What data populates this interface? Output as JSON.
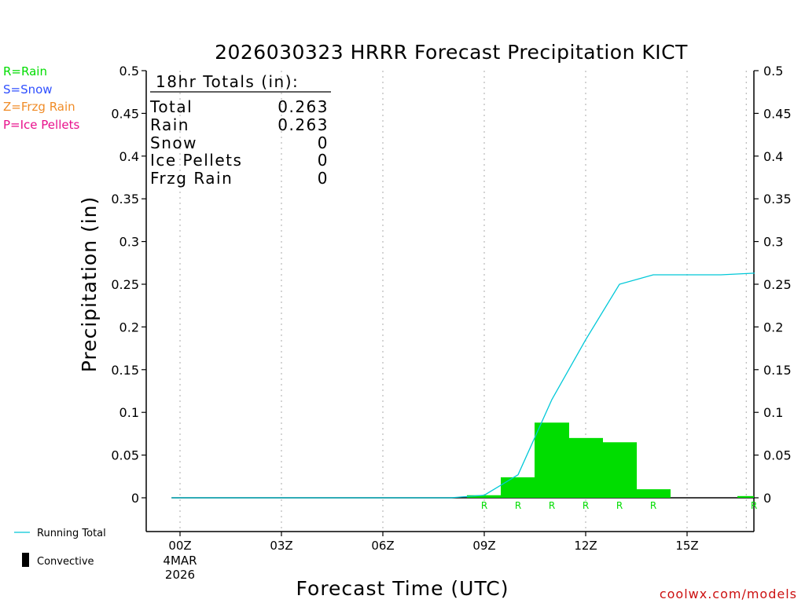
{
  "chart_data": {
    "type": "bar",
    "title": "2026030323 HRRR Forecast Precipitation KICT",
    "xlabel": "Forecast Time (UTC)",
    "ylabel": "Precipitation (in)",
    "ylim": [
      -0.04,
      0.5
    ],
    "yticks": [
      0,
      0.05,
      0.1,
      0.15,
      0.2,
      0.25,
      0.3,
      0.35,
      0.4,
      0.45,
      0.5
    ],
    "ytick_labels": [
      "0",
      "0.05",
      "0.1",
      "0.15",
      "0.2",
      "0.25",
      "0.3",
      "0.35",
      "0.4",
      "0.45",
      "0.5"
    ],
    "xlim": [
      -1,
      17
    ],
    "xticks": [
      {
        "hour": 0,
        "label": "00Z",
        "sublabels": [
          "4MAR",
          "2026"
        ]
      },
      {
        "hour": 3,
        "label": "03Z"
      },
      {
        "hour": 6,
        "label": "06Z"
      },
      {
        "hour": 9,
        "label": "09Z"
      },
      {
        "hour": 12,
        "label": "12Z"
      },
      {
        "hour": 15,
        "label": "15Z"
      }
    ],
    "grid": "vertical dotted",
    "series": [
      {
        "name": "R=Rain",
        "color": "#00dd00",
        "x": [
          9,
          10,
          11,
          12,
          13,
          14,
          17
        ],
        "values": [
          0.003,
          0.024,
          0.088,
          0.07,
          0.065,
          0.01,
          0.002
        ],
        "ptype_markers": [
          "R",
          "R",
          "R",
          "R",
          "R",
          "R",
          "R"
        ]
      },
      {
        "name": "Running Total",
        "color": "#00c8d8",
        "type": "line",
        "x": [
          -0.25,
          8,
          9,
          10,
          11,
          12,
          13,
          14,
          15,
          16,
          17
        ],
        "values": [
          0,
          0,
          0.003,
          0.027,
          0.115,
          0.185,
          0.25,
          0.261,
          0.261,
          0.261,
          0.263
        ]
      }
    ],
    "totals_box": {
      "header": "18hr Totals (in):",
      "rows": [
        {
          "label": "Total",
          "value": "0.263"
        },
        {
          "label": "Rain",
          "value": "0.263"
        },
        {
          "label": "Snow",
          "value": "0"
        },
        {
          "label": "Ice Pellets",
          "value": "0"
        },
        {
          "label": "Frzg Rain",
          "value": "0"
        }
      ]
    }
  },
  "legend_types": [
    {
      "label": "R=Rain",
      "color": "#00dd00"
    },
    {
      "label": "S=Snow",
      "color": "#3050ff"
    },
    {
      "label": "Z=Frzg Rain",
      "color": "#f08c28"
    },
    {
      "label": "P=Ice Pellets",
      "color": "#e8108c"
    }
  ],
  "legend_bottom": {
    "running_total": "Running Total",
    "convective": "Convective",
    "running_total_color": "#00c8d8"
  },
  "credit": {
    "text": "coolwx.com/models",
    "color": "#cc1010"
  }
}
